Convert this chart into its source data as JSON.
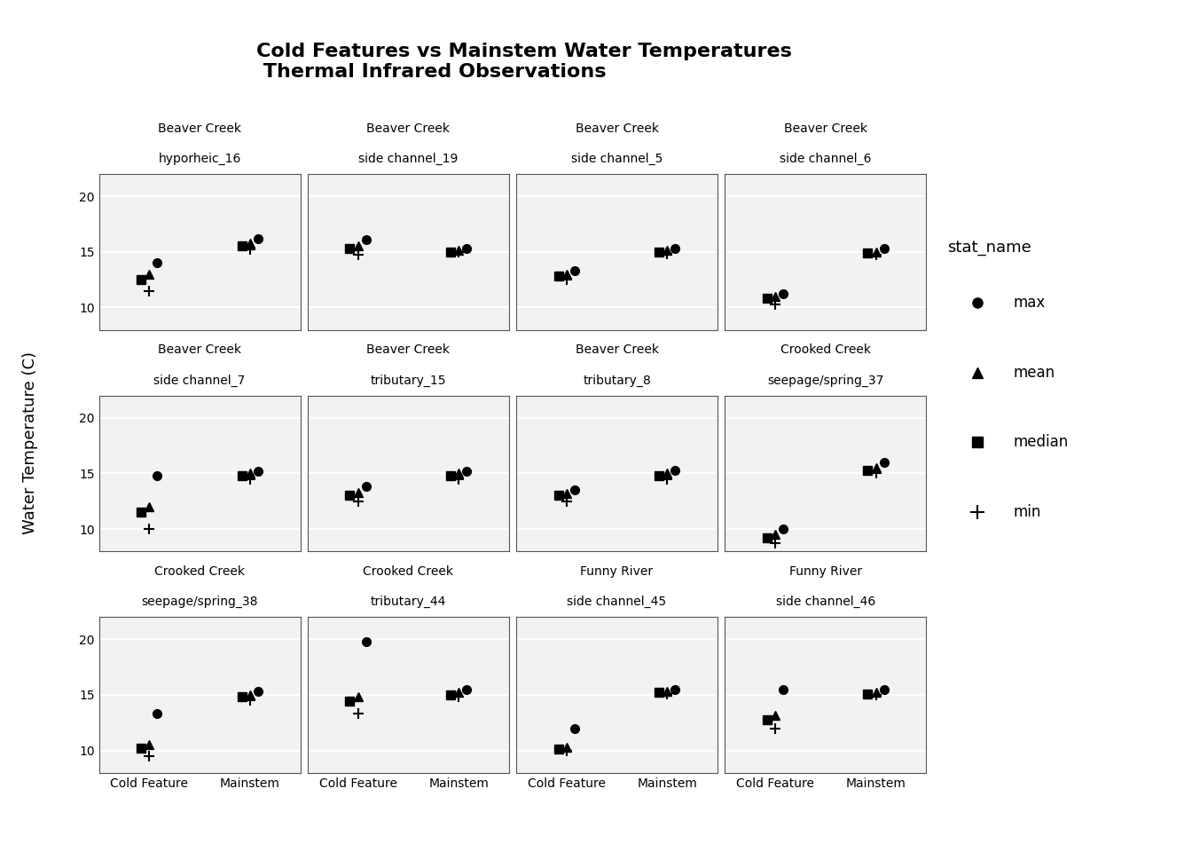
{
  "title": "Cold Features vs Mainstem Water Temperatures\n Thermal Infrared Observations",
  "ylabel": "Water Temperature (C)",
  "panels": [
    {
      "creek": "Beaver Creek",
      "feature": "hyporheic_16",
      "cold_feature": {
        "max": 14.0,
        "mean": 13.0,
        "median": 12.5,
        "min": 11.5
      },
      "mainstem": {
        "max": 16.2,
        "mean": 15.8,
        "median": 15.5,
        "min": 15.2
      }
    },
    {
      "creek": "Beaver Creek",
      "feature": "side channel_19",
      "cold_feature": {
        "max": 16.1,
        "mean": 15.5,
        "median": 15.3,
        "min": 14.7
      },
      "mainstem": {
        "max": 15.3,
        "mean": 15.1,
        "median": 15.0,
        "min": 15.0
      }
    },
    {
      "creek": "Beaver Creek",
      "feature": "side channel_5",
      "cold_feature": {
        "max": 13.3,
        "mean": 13.0,
        "median": 12.8,
        "min": 12.5
      },
      "mainstem": {
        "max": 15.3,
        "mean": 15.1,
        "median": 15.0,
        "min": 14.8
      }
    },
    {
      "creek": "Beaver Creek",
      "feature": "side channel_6",
      "cold_feature": {
        "max": 11.2,
        "mean": 11.0,
        "median": 10.8,
        "min": 10.3
      },
      "mainstem": {
        "max": 15.3,
        "mean": 15.0,
        "median": 14.9,
        "min": 14.7
      }
    },
    {
      "creek": "Beaver Creek",
      "feature": "side channel_7",
      "cold_feature": {
        "max": 14.8,
        "mean": 12.0,
        "median": 11.5,
        "min": 10.0
      },
      "mainstem": {
        "max": 15.2,
        "mean": 15.0,
        "median": 14.8,
        "min": 14.5
      }
    },
    {
      "creek": "Beaver Creek",
      "feature": "tributary_15",
      "cold_feature": {
        "max": 13.8,
        "mean": 13.3,
        "median": 13.0,
        "min": 12.5
      },
      "mainstem": {
        "max": 15.2,
        "mean": 15.0,
        "median": 14.8,
        "min": 14.5
      }
    },
    {
      "creek": "Beaver Creek",
      "feature": "tributary_8",
      "cold_feature": {
        "max": 13.5,
        "mean": 13.2,
        "median": 13.0,
        "min": 12.5
      },
      "mainstem": {
        "max": 15.3,
        "mean": 15.0,
        "median": 14.8,
        "min": 14.5
      }
    },
    {
      "creek": "Crooked Creek",
      "feature": "seepage/spring_37",
      "cold_feature": {
        "max": 10.0,
        "mean": 9.5,
        "median": 9.2,
        "min": 8.7
      },
      "mainstem": {
        "max": 16.0,
        "mean": 15.5,
        "median": 15.3,
        "min": 15.0
      }
    },
    {
      "creek": "Crooked Creek",
      "feature": "seepage/spring_38",
      "cold_feature": {
        "max": 13.3,
        "mean": 10.5,
        "median": 10.2,
        "min": 9.5
      },
      "mainstem": {
        "max": 15.3,
        "mean": 15.0,
        "median": 14.8,
        "min": 14.5
      }
    },
    {
      "creek": "Crooked Creek",
      "feature": "tributary_44",
      "cold_feature": {
        "max": 19.8,
        "mean": 14.8,
        "median": 14.4,
        "min": 13.3
      },
      "mainstem": {
        "max": 15.5,
        "mean": 15.2,
        "median": 15.0,
        "min": 14.8
      }
    },
    {
      "creek": "Funny River",
      "feature": "side channel_45",
      "cold_feature": {
        "max": 12.0,
        "mean": 10.3,
        "median": 10.1,
        "min": 10.0
      },
      "mainstem": {
        "max": 15.5,
        "mean": 15.3,
        "median": 15.2,
        "min": 15.1
      }
    },
    {
      "creek": "Funny River",
      "feature": "side channel_46",
      "cold_feature": {
        "max": 15.5,
        "mean": 13.2,
        "median": 12.8,
        "min": 12.0
      },
      "mainstem": {
        "max": 15.5,
        "mean": 15.2,
        "median": 15.1,
        "min": 15.0
      }
    }
  ],
  "header_top_bg": "#c8c8c8",
  "header_bot_bg": "#d8d8d8",
  "plot_bg": "#f2f2f2",
  "grid_color": "#ffffff",
  "ylim": [
    8,
    22
  ],
  "yticks": [
    10,
    15,
    20
  ],
  "stat_order": [
    "max",
    "mean",
    "median",
    "min"
  ],
  "markers": {
    "max": "o",
    "mean": "^",
    "median": "s",
    "min": "+"
  },
  "marker_sizes": {
    "max": 7,
    "mean": 7,
    "median": 7,
    "min": 9
  },
  "x_positions": {
    "cold_feature": 0,
    "mainstem": 1
  },
  "x_offsets": {
    "max": 0.08,
    "mean": 0.0,
    "median": -0.08,
    "min": 0.0
  },
  "legend_title": "stat_name",
  "legend_items": [
    {
      "label": "max",
      "marker": "o"
    },
    {
      "label": "mean",
      "marker": "^"
    },
    {
      "label": "median",
      "marker": "s"
    },
    {
      "label": "min",
      "marker": "+"
    }
  ]
}
